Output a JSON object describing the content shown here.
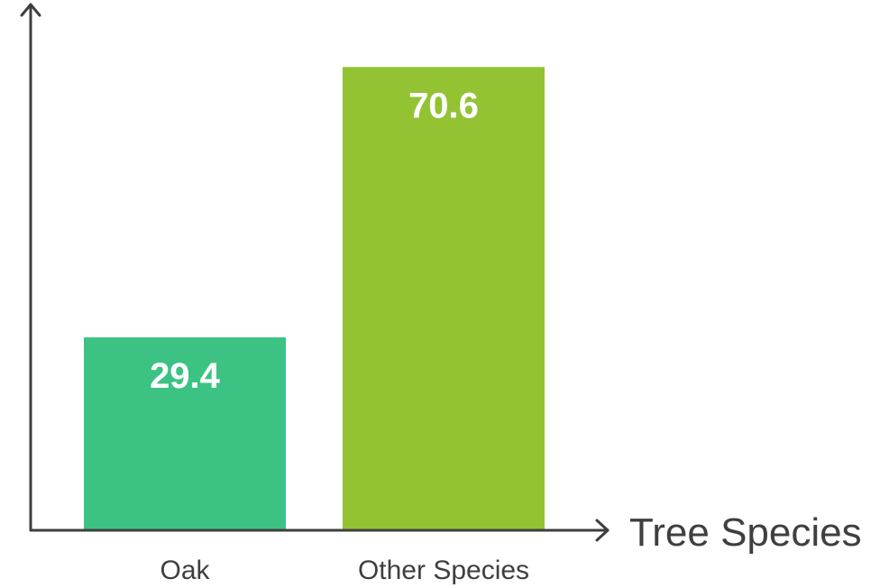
{
  "chart_data": {
    "type": "bar",
    "categories": [
      "Oak",
      "Other Species"
    ],
    "values": [
      29.4,
      70.6
    ],
    "value_labels": [
      "29.4",
      "70.6"
    ],
    "title": "",
    "xlabel": "Tree Species",
    "ylabel": "",
    "ylim": [
      0,
      76
    ],
    "grid": false,
    "colors": [
      "#3cc383",
      "#93c233"
    ]
  }
}
